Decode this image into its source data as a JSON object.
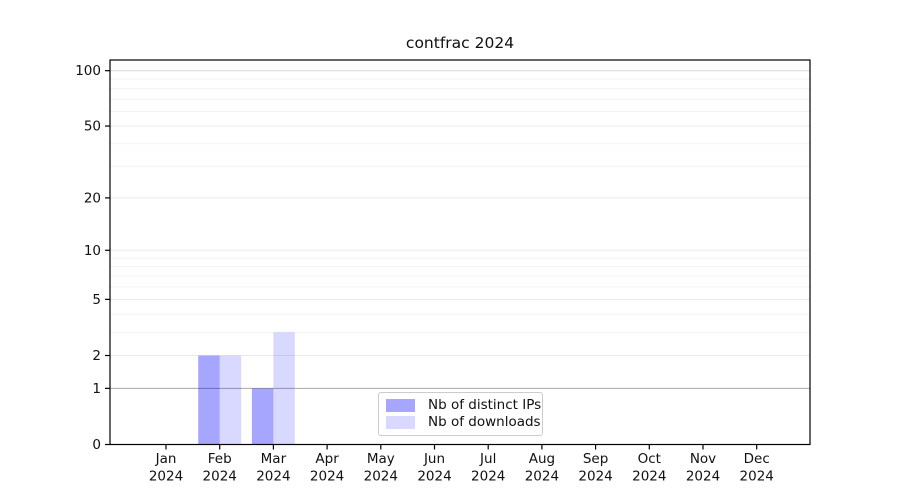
{
  "chart_data": {
    "type": "bar",
    "title": "contfrac 2024",
    "categories": [
      "Jan",
      "Feb",
      "Mar",
      "Apr",
      "May",
      "Jun",
      "Jul",
      "Aug",
      "Sep",
      "Oct",
      "Nov",
      "Dec"
    ],
    "x_tick_year": "2024",
    "series": [
      {
        "name": "Nb of distinct IPs",
        "base_color": "#0000ff",
        "alpha": 0.35,
        "rendered_color": "#a6a6ff",
        "values": [
          0,
          2,
          1,
          0,
          0,
          0,
          0,
          0,
          0,
          0,
          0,
          0
        ]
      },
      {
        "name": "Nb of downloads",
        "base_color": "#0000ff",
        "alpha": 0.15,
        "rendered_color": "#d9d9ff",
        "values": [
          0,
          2,
          3,
          0,
          0,
          0,
          0,
          0,
          0,
          0,
          0,
          0
        ]
      }
    ],
    "xlabel": "",
    "ylabel": "",
    "y_axis": {
      "scale": "log10(1+y)",
      "ticks": [
        0,
        1,
        2,
        5,
        10,
        20,
        50,
        100
      ],
      "minor_ticks": [
        3,
        4,
        6,
        7,
        8,
        9,
        30,
        40,
        60,
        70,
        80,
        90
      ],
      "ylim": [
        0,
        115
      ],
      "emphasized_gridline": 1
    },
    "legend": {
      "position": "lower center inside",
      "entries": [
        "Nb of distinct IPs",
        "Nb of downloads"
      ]
    },
    "grid": "on",
    "colors": {
      "axis": "#000000",
      "grid_minor": "#f3f3f3",
      "grid_major": "#eaeaea",
      "grid_reference": "#a8a8a8",
      "grid_top": "#d6d6d6",
      "text": "#111111"
    }
  }
}
